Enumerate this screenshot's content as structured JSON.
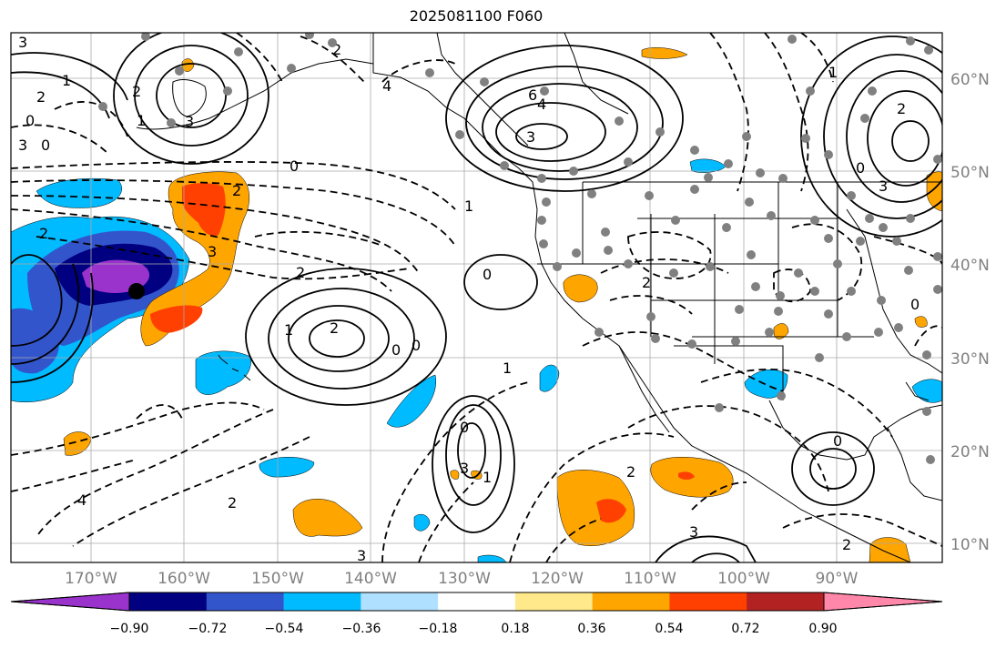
{
  "title": "2025081100 F060",
  "longitude_labels": [
    "170°W",
    "160°W",
    "150°W",
    "140°W",
    "130°W",
    "120°W",
    "110°W",
    "100°W",
    "90°W"
  ],
  "latitude_labels": [
    "60°N",
    "50°N",
    "40°N",
    "30°N",
    "20°N",
    "10°N"
  ],
  "colorbar": {
    "colors": [
      "#9933cc",
      "#000080",
      "#3355cc",
      "#00bbff",
      "#b0e0ff",
      "#ffffff",
      "#ffe98a",
      "#ffa500",
      "#ff4000",
      "#b22222",
      "#ff88aa"
    ],
    "tick_labels": [
      "−0.90",
      "−0.72",
      "−0.54",
      "−0.36",
      "−0.18",
      "0.18",
      "0.36",
      "0.54",
      "0.72",
      "0.90"
    ]
  },
  "contour_labels": [
    "3",
    "1",
    "2",
    "0",
    "3",
    "2",
    "1",
    "0",
    "2",
    "3",
    "4",
    "6",
    "4",
    "3",
    "2",
    "0",
    "3",
    "1",
    "2",
    "3",
    "2",
    "0",
    "2",
    "1",
    "2",
    "0",
    "1",
    "0",
    "0",
    "1",
    "0",
    "3",
    "1",
    "2",
    "4",
    "3",
    "2",
    "2",
    "0",
    "3",
    "2",
    "0"
  ]
}
